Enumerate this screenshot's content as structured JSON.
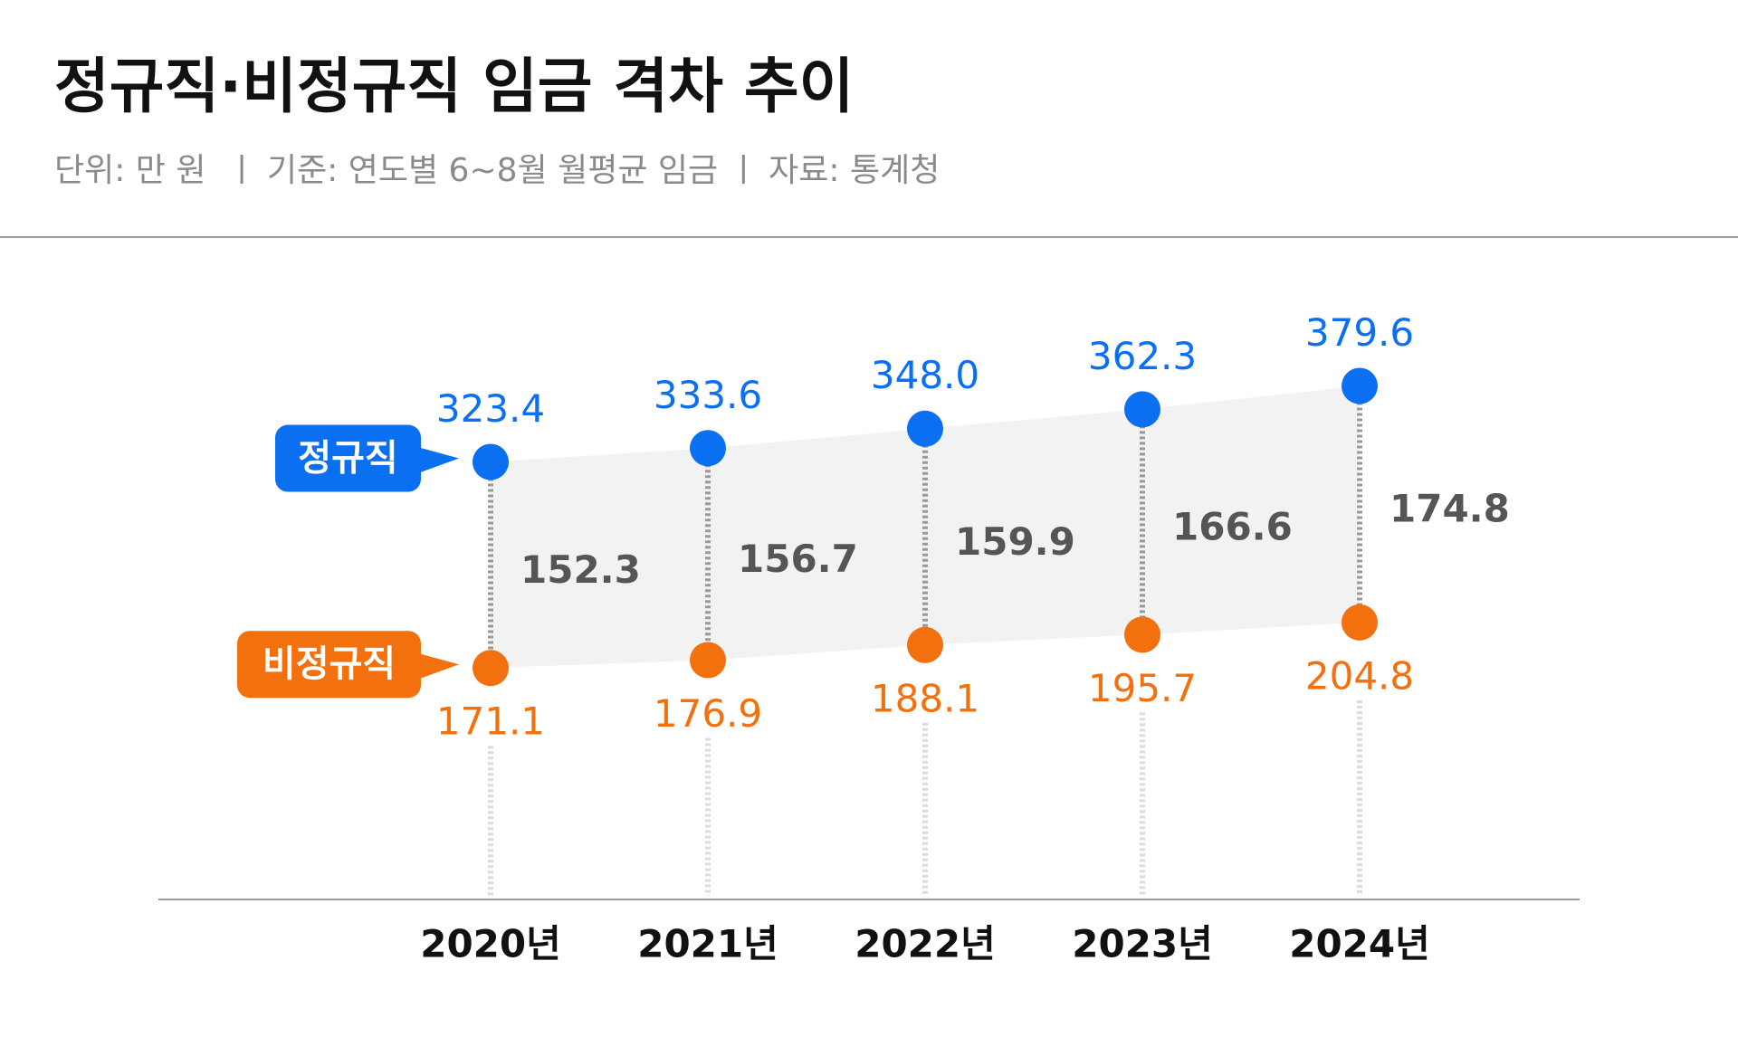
{
  "chart_data": {
    "type": "dumbbell",
    "title": "정규직·비정규직 임금 격차 추이",
    "subtitle": "단위: 만 원  ㅣ 기준: 연도별 6~8월 월평균 임금 ㅣ 자료: 통계청",
    "categories": [
      "2020년",
      "2021년",
      "2022년",
      "2023년",
      "2024년"
    ],
    "series": [
      {
        "name": "정규직",
        "color": "#0b6ff2",
        "values": [
          323.4,
          333.6,
          348.0,
          362.3,
          379.6
        ],
        "value_labels": [
          "323.4",
          "333.6",
          "348.0",
          "362.3",
          "379.6"
        ]
      },
      {
        "name": "비정규직",
        "color": "#f2700d",
        "values": [
          171.1,
          176.9,
          188.1,
          195.7,
          204.8
        ]
      }
    ],
    "gaps": [
      152.3,
      156.7,
      159.9,
      166.6,
      174.8
    ],
    "ylim": [
      0,
      600
    ]
  }
}
